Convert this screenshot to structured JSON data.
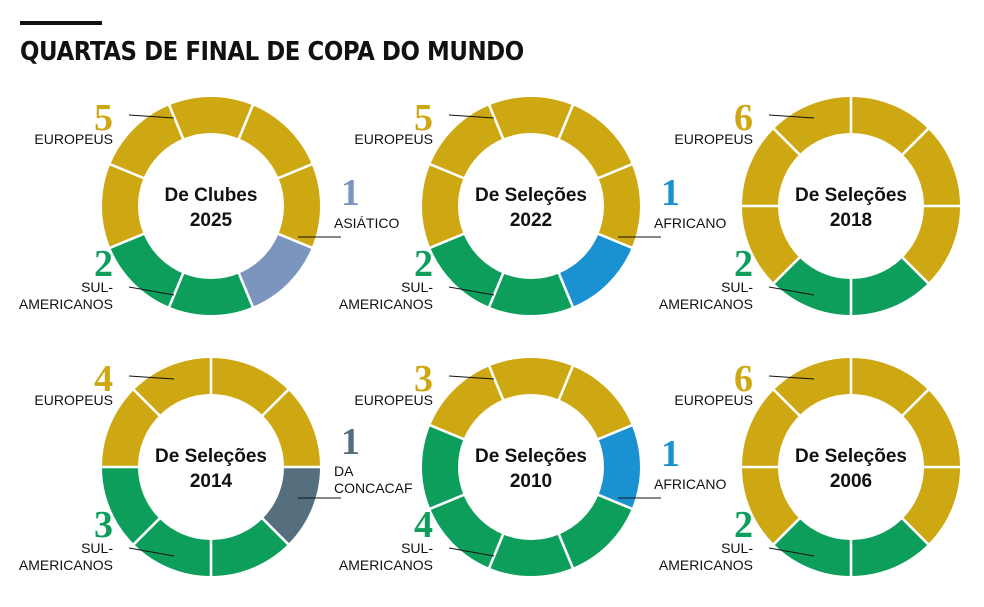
{
  "header": {
    "title": "QUARTAS DE FINAL DE COPA DO MUNDO"
  },
  "colors": {
    "europeus": "#CDA812",
    "sul_americanos": "#0D9E5C",
    "asiatico": "#7B95BF",
    "africano": "#1A92D1",
    "concacaf": "#566F7E",
    "separator": "#ffffff"
  },
  "chart_data": [
    {
      "type": "pie",
      "title": [
        "De Clubes",
        "2025"
      ],
      "slices": [
        {
          "key": "europeus",
          "count": "5",
          "label": [
            "EUROPEUS"
          ],
          "value": 5
        },
        {
          "key": "asiatico",
          "count": "1",
          "label": [
            "ASIÁTICO"
          ],
          "value": 1
        },
        {
          "key": "sul_americanos",
          "count": "2",
          "label": [
            "SUL-",
            "AMERICANOS"
          ],
          "value": 2
        }
      ]
    },
    {
      "type": "pie",
      "title": [
        "De Seleções",
        "2022"
      ],
      "slices": [
        {
          "key": "europeus",
          "count": "5",
          "label": [
            "EUROPEUS"
          ],
          "value": 5
        },
        {
          "key": "africano",
          "count": "1",
          "label": [
            "AFRICANO"
          ],
          "value": 1
        },
        {
          "key": "sul_americanos",
          "count": "2",
          "label": [
            "SUL-",
            "AMERICANOS"
          ],
          "value": 2
        }
      ]
    },
    {
      "type": "pie",
      "title": [
        "De Seleções",
        "2018"
      ],
      "slices": [
        {
          "key": "europeus",
          "count": "6",
          "label": [
            "EUROPEUS"
          ],
          "value": 6
        },
        {
          "key": "sul_americanos",
          "count": "2",
          "label": [
            "SUL-",
            "AMERICANOS"
          ],
          "value": 2
        }
      ]
    },
    {
      "type": "pie",
      "title": [
        "De Seleções",
        "2014"
      ],
      "slices": [
        {
          "key": "europeus",
          "count": "4",
          "label": [
            "EUROPEUS"
          ],
          "value": 4
        },
        {
          "key": "concacaf",
          "count": "1",
          "label": [
            "DA",
            "CONCACAF"
          ],
          "value": 1
        },
        {
          "key": "sul_americanos",
          "count": "3",
          "label": [
            "SUL-",
            "AMERICANOS"
          ],
          "value": 3
        }
      ]
    },
    {
      "type": "pie",
      "title": [
        "De Seleções",
        "2010"
      ],
      "slices": [
        {
          "key": "europeus",
          "count": "3",
          "label": [
            "EUROPEUS"
          ],
          "value": 3
        },
        {
          "key": "africano",
          "count": "1",
          "label": [
            "AFRICANO"
          ],
          "value": 1
        },
        {
          "key": "sul_americanos",
          "count": "4",
          "label": [
            "SUL-",
            "AMERICANOS"
          ],
          "value": 4
        }
      ]
    },
    {
      "type": "pie",
      "title": [
        "De Seleções",
        "2006"
      ],
      "slices": [
        {
          "key": "europeus",
          "count": "6",
          "label": [
            "EUROPEUS"
          ],
          "value": 6
        },
        {
          "key": "sul_americanos",
          "count": "2",
          "label": [
            "SUL-",
            "AMERICANOS"
          ],
          "value": 2
        }
      ]
    }
  ]
}
